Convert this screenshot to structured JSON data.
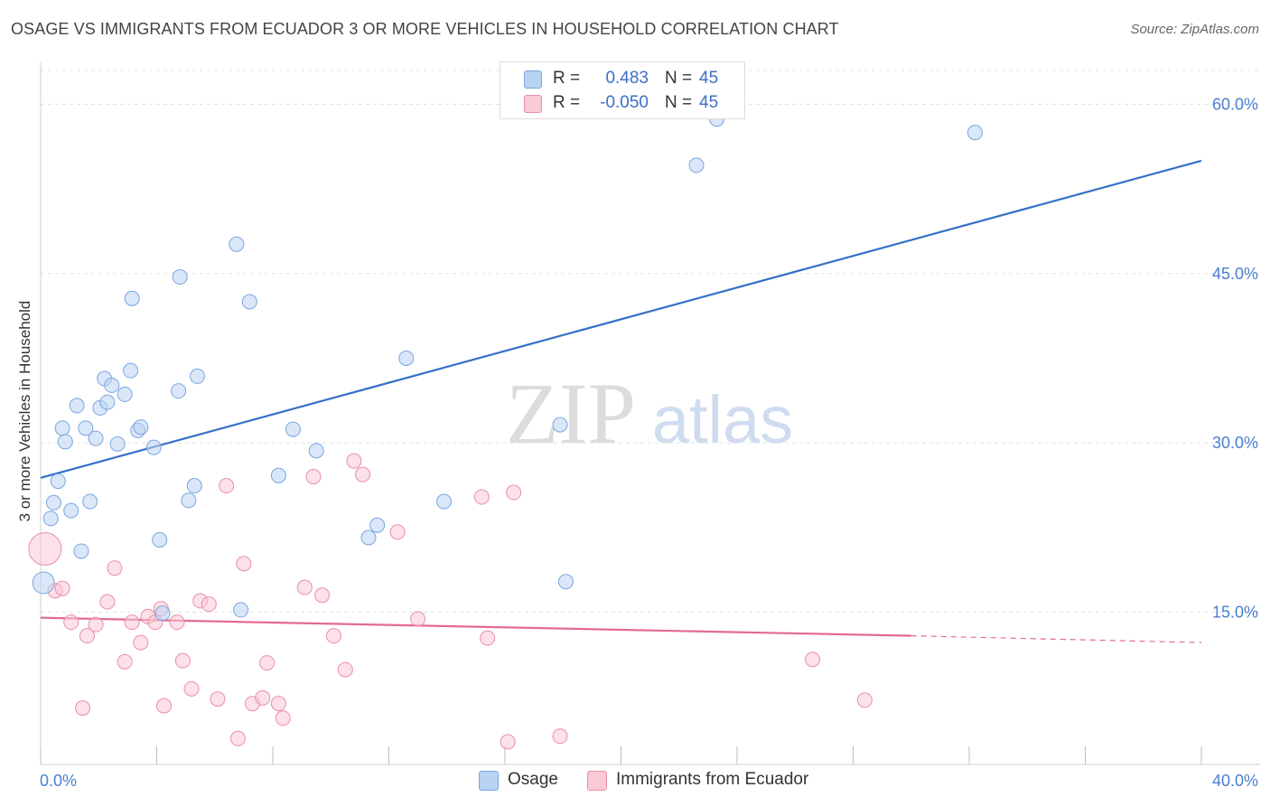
{
  "header": {
    "title": "OSAGE VS IMMIGRANTS FROM ECUADOR 3 OR MORE VEHICLES IN HOUSEHOLD CORRELATION CHART",
    "source": "Source: ZipAtlas.com"
  },
  "watermark": {
    "zip": "ZIP",
    "atlas": "atlas"
  },
  "legend_top": {
    "rows": [
      {
        "r_label": "R =",
        "r_value": "0.483",
        "n_label": "N =",
        "n_value": "45",
        "color": "#b9d3f3",
        "border": "#7aa6e0"
      },
      {
        "r_label": "R =",
        "r_value": "-0.050",
        "n_label": "N =",
        "n_value": "45",
        "color": "#f9c9d6",
        "border": "#e98fa9"
      }
    ]
  },
  "legend_bottom": {
    "items": [
      {
        "label": "Osage",
        "color": "#b9d3f3",
        "border": "#7aa6e0"
      },
      {
        "label": "Immigrants from Ecuador",
        "color": "#f9c9d6",
        "border": "#e98fa9"
      }
    ]
  },
  "chart_data": {
    "type": "scatter",
    "title": "OSAGE VS IMMIGRANTS FROM ECUADOR 3 OR MORE VEHICLES IN HOUSEHOLD CORRELATION CHART",
    "xlabel": "",
    "ylabel": "3 or more Vehicles in Household",
    "xlim": [
      0,
      40
    ],
    "ylim": [
      1.5,
      63
    ],
    "x_tick_labels": [
      "0.0%",
      "40.0%"
    ],
    "y_ticks": [
      15,
      30,
      45,
      60
    ],
    "y_tick_labels": [
      "15.0%",
      "30.0%",
      "45.0%",
      "60.0%"
    ],
    "grid": true,
    "legend_position": "top-center",
    "series": [
      {
        "name": "Osage",
        "color": "#7aa6e0",
        "fill": "#b9d3f3",
        "trend_color": "#3570c8",
        "trend": {
          "x": [
            0,
            40
          ],
          "y": [
            26.9,
            55.0
          ]
        },
        "points": [
          [
            0.1,
            17.6,
            12
          ],
          [
            0.35,
            23.3,
            8
          ],
          [
            0.45,
            24.7,
            8
          ],
          [
            0.6,
            26.6,
            8
          ],
          [
            0.75,
            31.3,
            8
          ],
          [
            0.85,
            30.1,
            8
          ],
          [
            1.05,
            24.0,
            8
          ],
          [
            1.25,
            33.3,
            8
          ],
          [
            1.4,
            20.4,
            8
          ],
          [
            1.55,
            31.3,
            8
          ],
          [
            1.7,
            24.8,
            8
          ],
          [
            1.9,
            30.4,
            8
          ],
          [
            2.05,
            33.1,
            8
          ],
          [
            2.2,
            35.7,
            8
          ],
          [
            2.3,
            33.6,
            8
          ],
          [
            2.45,
            35.1,
            8
          ],
          [
            2.65,
            29.9,
            8
          ],
          [
            2.9,
            34.3,
            8
          ],
          [
            3.1,
            36.4,
            8
          ],
          [
            3.15,
            42.8,
            8
          ],
          [
            3.35,
            31.1,
            8
          ],
          [
            3.45,
            31.4,
            8
          ],
          [
            3.9,
            29.6,
            8
          ],
          [
            4.1,
            21.4,
            8
          ],
          [
            4.2,
            14.9,
            8
          ],
          [
            4.75,
            34.6,
            8
          ],
          [
            4.8,
            44.7,
            8
          ],
          [
            5.1,
            24.9,
            8
          ],
          [
            5.3,
            26.2,
            8
          ],
          [
            5.4,
            35.9,
            8
          ],
          [
            6.75,
            47.6,
            8
          ],
          [
            6.9,
            15.2,
            8
          ],
          [
            7.2,
            42.5,
            8
          ],
          [
            8.2,
            27.1,
            8
          ],
          [
            8.7,
            31.2,
            8
          ],
          [
            9.5,
            29.3,
            8
          ],
          [
            11.3,
            21.6,
            8
          ],
          [
            11.6,
            22.7,
            8
          ],
          [
            12.6,
            37.5,
            8
          ],
          [
            13.9,
            24.8,
            8
          ],
          [
            17.9,
            31.6,
            8
          ],
          [
            18.1,
            17.7,
            8
          ],
          [
            22.6,
            54.6,
            8
          ],
          [
            23.3,
            58.7,
            8
          ],
          [
            32.2,
            57.5,
            8
          ]
        ]
      },
      {
        "name": "Immigrants from Ecuador",
        "color": "#e98fa9",
        "fill": "#f9c9d6",
        "trend_color": "#e36a90",
        "trend": {
          "x": [
            0,
            30
          ],
          "y": [
            14.5,
            12.9
          ]
        },
        "trend_dashed": {
          "x": [
            30,
            40
          ],
          "y": [
            12.9,
            12.3
          ]
        },
        "points": [
          [
            0.15,
            20.6,
            18
          ],
          [
            0.5,
            16.9,
            8
          ],
          [
            0.75,
            17.1,
            8
          ],
          [
            1.05,
            14.1,
            8
          ],
          [
            1.45,
            6.5,
            8
          ],
          [
            1.6,
            12.9,
            8
          ],
          [
            1.9,
            13.9,
            8
          ],
          [
            2.3,
            15.9,
            8
          ],
          [
            2.55,
            18.9,
            8
          ],
          [
            2.9,
            10.6,
            8
          ],
          [
            3.15,
            14.1,
            8
          ],
          [
            3.45,
            12.3,
            8
          ],
          [
            3.7,
            14.6,
            8
          ],
          [
            3.95,
            14.1,
            8
          ],
          [
            4.15,
            15.3,
            8
          ],
          [
            4.25,
            6.7,
            8
          ],
          [
            4.7,
            14.1,
            8
          ],
          [
            4.9,
            10.7,
            8
          ],
          [
            5.2,
            8.2,
            8
          ],
          [
            5.5,
            16.0,
            8
          ],
          [
            5.8,
            15.7,
            8
          ],
          [
            6.1,
            7.3,
            8
          ],
          [
            6.4,
            26.2,
            8
          ],
          [
            6.8,
            3.8,
            8
          ],
          [
            7.0,
            19.3,
            8
          ],
          [
            7.3,
            6.9,
            8
          ],
          [
            7.65,
            7.4,
            8
          ],
          [
            7.8,
            10.5,
            8
          ],
          [
            8.2,
            6.9,
            8
          ],
          [
            8.35,
            5.6,
            8
          ],
          [
            9.1,
            17.2,
            8
          ],
          [
            9.4,
            27.0,
            8
          ],
          [
            9.7,
            16.5,
            8
          ],
          [
            10.1,
            12.9,
            8
          ],
          [
            10.5,
            9.9,
            8
          ],
          [
            10.8,
            28.4,
            8
          ],
          [
            11.1,
            27.2,
            8
          ],
          [
            12.3,
            22.1,
            8
          ],
          [
            13.0,
            14.4,
            8
          ],
          [
            15.2,
            25.2,
            8
          ],
          [
            15.4,
            12.7,
            8
          ],
          [
            16.1,
            3.5,
            8
          ],
          [
            16.3,
            25.6,
            8
          ],
          [
            17.9,
            4.0,
            8
          ],
          [
            26.6,
            10.8,
            8
          ]
        ]
      },
      {
        "name": "",
        "color": "#e98fa9",
        "fill": "#f9c9d6",
        "points": [
          [
            28.4,
            7.2,
            8
          ]
        ]
      }
    ]
  }
}
